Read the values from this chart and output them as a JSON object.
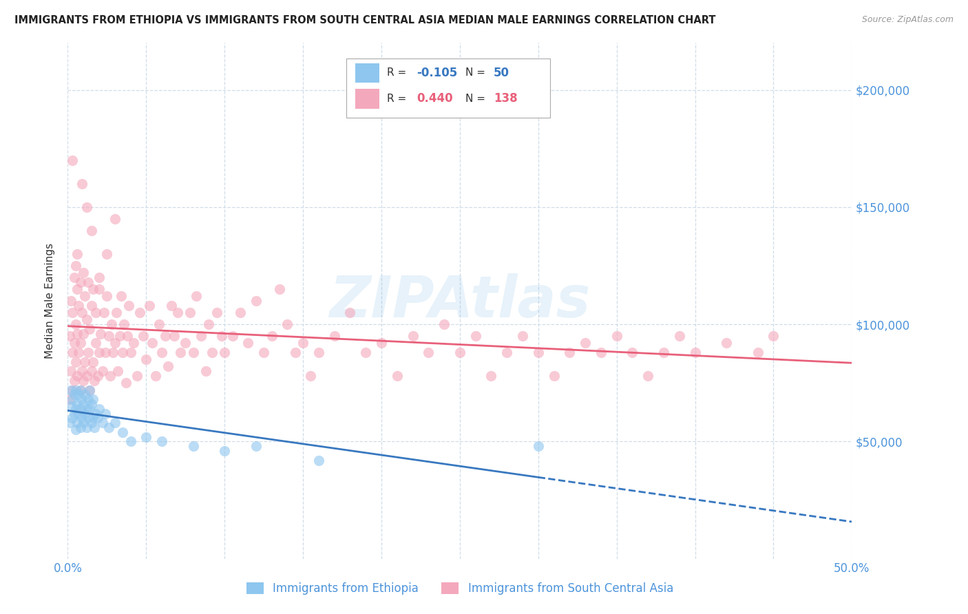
{
  "title": "IMMIGRANTS FROM ETHIOPIA VS IMMIGRANTS FROM SOUTH CENTRAL ASIA MEDIAN MALE EARNINGS CORRELATION CHART",
  "source": "Source: ZipAtlas.com",
  "ylabel": "Median Male Earnings",
  "ymin": 0,
  "ymax": 220000,
  "xmin": 0.0,
  "xmax": 0.5,
  "yticks": [
    50000,
    100000,
    150000,
    200000
  ],
  "ytick_labels": [
    "$50,000",
    "$100,000",
    "$150,000",
    "$200,000"
  ],
  "color_ethiopia": "#8ec6ef",
  "color_sca": "#f4a8bc",
  "color_trendline_ethiopia": "#3878c0",
  "color_trendline_sca": "#e8607a",
  "color_axis_labels": "#4d94db",
  "color_grid": "#d0dde8",
  "color_title": "#222222",
  "watermark": "ZIPAtlas",
  "ethiopia_x": [
    0.001,
    0.002,
    0.002,
    0.003,
    0.003,
    0.004,
    0.004,
    0.005,
    0.005,
    0.005,
    0.006,
    0.006,
    0.007,
    0.007,
    0.008,
    0.008,
    0.008,
    0.009,
    0.009,
    0.01,
    0.01,
    0.011,
    0.011,
    0.012,
    0.012,
    0.013,
    0.013,
    0.014,
    0.014,
    0.015,
    0.015,
    0.016,
    0.016,
    0.017,
    0.018,
    0.019,
    0.02,
    0.022,
    0.024,
    0.026,
    0.03,
    0.035,
    0.04,
    0.05,
    0.06,
    0.08,
    0.1,
    0.12,
    0.16,
    0.3
  ],
  "ethiopia_y": [
    58000,
    65000,
    72000,
    60000,
    68000,
    62000,
    70000,
    64000,
    72000,
    55000,
    66000,
    58000,
    62000,
    70000,
    56000,
    64000,
    72000,
    60000,
    68000,
    58000,
    66000,
    62000,
    70000,
    56000,
    64000,
    60000,
    68000,
    64000,
    72000,
    58000,
    66000,
    60000,
    68000,
    56000,
    62000,
    60000,
    64000,
    58000,
    62000,
    56000,
    58000,
    54000,
    50000,
    52000,
    50000,
    48000,
    46000,
    48000,
    42000,
    48000
  ],
  "sca_x": [
    0.001,
    0.001,
    0.002,
    0.002,
    0.003,
    0.003,
    0.003,
    0.004,
    0.004,
    0.004,
    0.005,
    0.005,
    0.005,
    0.006,
    0.006,
    0.006,
    0.007,
    0.007,
    0.008,
    0.008,
    0.008,
    0.009,
    0.009,
    0.01,
    0.01,
    0.01,
    0.011,
    0.011,
    0.012,
    0.012,
    0.013,
    0.013,
    0.014,
    0.014,
    0.015,
    0.015,
    0.016,
    0.016,
    0.017,
    0.018,
    0.018,
    0.019,
    0.02,
    0.02,
    0.021,
    0.022,
    0.023,
    0.024,
    0.025,
    0.026,
    0.027,
    0.028,
    0.029,
    0.03,
    0.031,
    0.032,
    0.033,
    0.034,
    0.035,
    0.036,
    0.037,
    0.038,
    0.039,
    0.04,
    0.042,
    0.044,
    0.046,
    0.048,
    0.05,
    0.052,
    0.054,
    0.056,
    0.058,
    0.06,
    0.062,
    0.064,
    0.066,
    0.068,
    0.07,
    0.072,
    0.075,
    0.078,
    0.08,
    0.082,
    0.085,
    0.088,
    0.09,
    0.092,
    0.095,
    0.098,
    0.1,
    0.105,
    0.11,
    0.115,
    0.12,
    0.125,
    0.13,
    0.135,
    0.14,
    0.145,
    0.15,
    0.155,
    0.16,
    0.17,
    0.18,
    0.19,
    0.2,
    0.21,
    0.22,
    0.23,
    0.24,
    0.25,
    0.26,
    0.27,
    0.28,
    0.29,
    0.3,
    0.31,
    0.32,
    0.33,
    0.34,
    0.35,
    0.36,
    0.37,
    0.38,
    0.39,
    0.4,
    0.42,
    0.44,
    0.45,
    0.003,
    0.006,
    0.009,
    0.012,
    0.015,
    0.02,
    0.025,
    0.03
  ],
  "sca_y": [
    68000,
    95000,
    80000,
    110000,
    72000,
    88000,
    105000,
    76000,
    92000,
    120000,
    84000,
    100000,
    125000,
    78000,
    96000,
    115000,
    88000,
    108000,
    72000,
    92000,
    118000,
    80000,
    105000,
    76000,
    96000,
    122000,
    84000,
    112000,
    78000,
    102000,
    88000,
    118000,
    72000,
    98000,
    80000,
    108000,
    84000,
    115000,
    76000,
    92000,
    105000,
    78000,
    88000,
    115000,
    96000,
    80000,
    105000,
    88000,
    112000,
    95000,
    78000,
    100000,
    88000,
    92000,
    105000,
    80000,
    95000,
    112000,
    88000,
    100000,
    75000,
    95000,
    108000,
    88000,
    92000,
    78000,
    105000,
    95000,
    85000,
    108000,
    92000,
    78000,
    100000,
    88000,
    95000,
    82000,
    108000,
    95000,
    105000,
    88000,
    92000,
    105000,
    88000,
    112000,
    95000,
    80000,
    100000,
    88000,
    105000,
    95000,
    88000,
    95000,
    105000,
    92000,
    110000,
    88000,
    95000,
    115000,
    100000,
    88000,
    92000,
    78000,
    88000,
    95000,
    105000,
    88000,
    92000,
    78000,
    95000,
    88000,
    100000,
    88000,
    95000,
    78000,
    88000,
    95000,
    88000,
    78000,
    88000,
    92000,
    88000,
    95000,
    88000,
    78000,
    88000,
    95000,
    88000,
    92000,
    88000,
    95000,
    170000,
    130000,
    160000,
    150000,
    140000,
    120000,
    130000,
    145000
  ]
}
